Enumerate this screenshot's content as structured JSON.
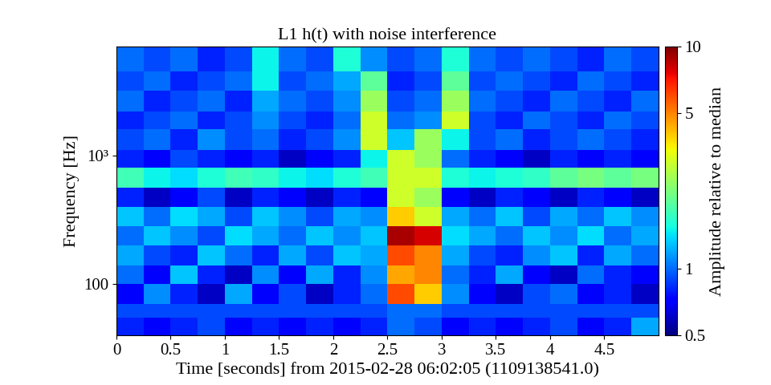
{
  "chart_data": {
    "type": "heatmap",
    "title": "L1 h(t) with noise interference",
    "x_label": "Time [seconds] from 2015-02-28 06:02:05 (1109138541.0)",
    "y_label": "Frequency [Hz]",
    "log": "y",
    "xlim": [
      0,
      5
    ],
    "xticks": [
      0,
      0.5,
      1,
      1.5,
      2,
      2.5,
      3,
      3.5,
      4,
      4.5
    ],
    "ylim": [
      40,
      7000
    ],
    "yticks": [
      100,
      {
        "value": 1000,
        "label": "10³"
      }
    ],
    "x_edges": [
      0,
      0.25,
      0.5,
      0.75,
      1,
      1.25,
      1.5,
      1.75,
      2,
      2.25,
      2.5,
      2.75,
      3,
      3.25,
      3.5,
      3.75,
      4,
      4.25,
      4.5,
      4.75,
      5
    ],
    "y_edges": [
      40,
      55,
      70,
      100,
      140,
      200,
      280,
      400,
      560,
      800,
      1100,
      1600,
      2200,
      3200,
      4500,
      7000
    ],
    "cells": [
      [
        0.8,
        0.7,
        0.8,
        0.9,
        0.7,
        0.8,
        0.7,
        0.8,
        0.7,
        0.8,
        1.0,
        0.9,
        0.7,
        0.8,
        0.7,
        0.8,
        0.9,
        0.7,
        0.8,
        1.2
      ],
      [
        0.9,
        0.9,
        0.9,
        0.9,
        0.9,
        0.9,
        0.9,
        0.9,
        0.9,
        0.9,
        1.0,
        1.0,
        0.9,
        0.9,
        0.9,
        0.9,
        0.9,
        0.9,
        0.9,
        0.9
      ],
      [
        0.7,
        1.1,
        0.8,
        0.6,
        1.2,
        0.7,
        0.9,
        0.6,
        0.8,
        1.0,
        6.0,
        4.0,
        1.1,
        0.7,
        0.6,
        0.9,
        1.0,
        0.7,
        0.8,
        0.6
      ],
      [
        1.0,
        0.7,
        1.3,
        0.8,
        0.6,
        1.1,
        0.7,
        1.2,
        0.8,
        1.1,
        4.5,
        5.0,
        1.0,
        0.8,
        1.2,
        0.7,
        0.6,
        1.0,
        0.8,
        0.7
      ],
      [
        1.2,
        0.9,
        0.8,
        1.3,
        1.0,
        0.8,
        1.2,
        0.9,
        1.3,
        1.2,
        6.0,
        5.0,
        1.2,
        0.9,
        0.8,
        1.1,
        1.3,
        0.8,
        1.2,
        1.0
      ],
      [
        1.0,
        1.3,
        1.1,
        0.9,
        1.4,
        1.2,
        1.0,
        1.3,
        1.1,
        1.3,
        9.0,
        8.0,
        1.4,
        1.2,
        1.0,
        1.3,
        1.1,
        1.4,
        1.0,
        1.2
      ],
      [
        1.3,
        1.0,
        1.4,
        1.2,
        0.9,
        1.3,
        1.1,
        0.9,
        1.2,
        1.1,
        4.0,
        3.0,
        1.2,
        1.0,
        1.3,
        0.9,
        1.2,
        1.0,
        1.3,
        1.1
      ],
      [
        0.8,
        0.6,
        0.7,
        0.9,
        0.6,
        0.8,
        0.7,
        0.6,
        0.8,
        0.7,
        3.0,
        2.5,
        0.7,
        0.6,
        0.8,
        0.7,
        0.6,
        0.8,
        0.7,
        0.6
      ],
      [
        1.8,
        1.5,
        1.4,
        1.6,
        1.8,
        1.7,
        1.5,
        1.4,
        1.6,
        1.8,
        3.0,
        3.0,
        1.6,
        1.5,
        1.6,
        1.7,
        2.0,
        2.2,
        2.0,
        2.2
      ],
      [
        0.8,
        0.7,
        0.9,
        0.8,
        0.7,
        0.8,
        0.6,
        0.7,
        0.8,
        1.5,
        3.0,
        2.5,
        1.0,
        0.8,
        0.7,
        0.6,
        0.8,
        0.7,
        0.8,
        0.7
      ],
      [
        0.9,
        1.0,
        0.8,
        1.1,
        0.9,
        1.0,
        0.8,
        0.9,
        1.1,
        3.0,
        1.3,
        2.5,
        1.5,
        0.9,
        1.0,
        0.8,
        0.9,
        1.0,
        0.9,
        0.8
      ],
      [
        0.8,
        0.9,
        1.0,
        0.8,
        0.9,
        1.1,
        0.9,
        0.8,
        1.0,
        3.0,
        1.0,
        1.1,
        3.0,
        0.9,
        0.8,
        1.0,
        0.9,
        0.8,
        1.0,
        0.9
      ],
      [
        1.0,
        0.8,
        0.9,
        1.0,
        0.8,
        1.2,
        1.0,
        0.9,
        1.1,
        2.5,
        0.9,
        1.0,
        2.5,
        1.0,
        0.9,
        0.8,
        1.0,
        0.9,
        0.8,
        1.0
      ],
      [
        0.9,
        1.0,
        0.8,
        0.9,
        1.0,
        1.5,
        0.9,
        1.0,
        1.2,
        2.0,
        0.8,
        0.9,
        2.0,
        0.9,
        1.0,
        0.9,
        0.8,
        1.0,
        0.9,
        0.8
      ],
      [
        1.0,
        0.9,
        1.0,
        0.8,
        0.9,
        1.5,
        1.0,
        0.9,
        1.6,
        1.1,
        0.9,
        1.0,
        1.6,
        1.0,
        0.9,
        1.0,
        0.9,
        0.8,
        1.0,
        0.9
      ]
    ],
    "colorbar_label": "Amplitude relative to median",
    "colorbar_range": [
      0.5,
      10
    ],
    "colorbar_ticks": [
      0.5,
      1,
      5,
      10
    ]
  }
}
